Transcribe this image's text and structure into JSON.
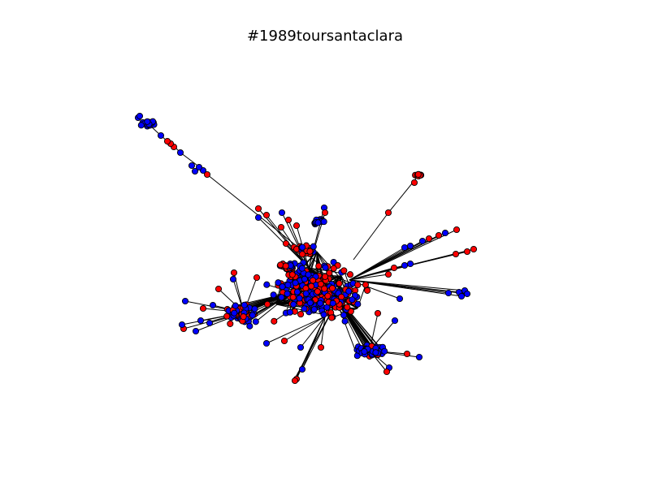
{
  "title": "#1989toursantaclara",
  "colors": {
    "red": "#ff0000",
    "blue": "#0000ff",
    "edge": "#000000",
    "background": "#ffffff"
  }
}
